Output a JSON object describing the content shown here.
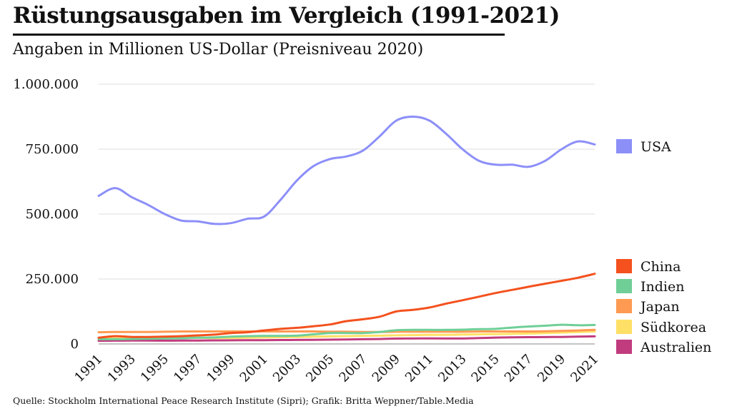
{
  "title": "Rüstungsausgaben im Vergleich (1991-2021)",
  "subtitle": "Angaben in Millionen US-Dollar (Preisniveau 2020)",
  "source": "Quelle: Stockholm International Peace Research Institute (Sipri); Grafik: Britta Weppner/Table.Media",
  "chart_data": {
    "type": "line",
    "title": "Rüstungsausgaben im Vergleich (1991-2021)",
    "subtitle": "Angaben in Millionen US-Dollar (Preisniveau 2020)",
    "xlabel": "",
    "ylabel": "",
    "ylim": [
      0,
      1000000
    ],
    "y_ticks": [
      0,
      250000,
      500000,
      750000,
      1000000
    ],
    "y_tick_labels": [
      "0",
      "250.000",
      "500.000",
      "750.000",
      "1.000.000"
    ],
    "x_tick_labels": [
      "1991",
      "1993",
      "1995",
      "1997",
      "1999",
      "2001",
      "2003",
      "2005",
      "2007",
      "2009",
      "2011",
      "2013",
      "2015",
      "2017",
      "2019",
      "2021"
    ],
    "grid": true,
    "legend_position": "right",
    "x": [
      1991,
      1992,
      1993,
      1994,
      1995,
      1996,
      1997,
      1998,
      1999,
      2000,
      2001,
      2002,
      2003,
      2004,
      2005,
      2006,
      2007,
      2008,
      2009,
      2010,
      2011,
      2012,
      2013,
      2014,
      2015,
      2016,
      2017,
      2018,
      2019,
      2020,
      2021
    ],
    "series": [
      {
        "name": "USA",
        "color": "#8c8ff8",
        "values": [
          570000,
          600000,
          565000,
          535000,
          500000,
          475000,
          472000,
          462000,
          465000,
          482000,
          490000,
          555000,
          630000,
          685000,
          712000,
          722000,
          745000,
          800000,
          860000,
          875000,
          860000,
          810000,
          750000,
          705000,
          690000,
          690000,
          682000,
          705000,
          750000,
          780000,
          768000
        ]
      },
      {
        "name": "China",
        "color": "#f4511e",
        "values": [
          24000,
          30000,
          27000,
          27000,
          28000,
          30000,
          33000,
          36000,
          42000,
          45000,
          52000,
          58000,
          62000,
          68000,
          75000,
          88000,
          95000,
          105000,
          125000,
          131000,
          140000,
          155000,
          168000,
          182000,
          196000,
          208000,
          220000,
          232000,
          243000,
          255000,
          270000
        ]
      },
      {
        "name": "Indien",
        "color": "#6fcf97",
        "values": [
          18000,
          18000,
          19000,
          20000,
          21000,
          22000,
          24000,
          25000,
          28000,
          30000,
          31000,
          31000,
          32000,
          37000,
          42000,
          42000,
          42000,
          46000,
          53000,
          54000,
          54000,
          54000,
          55000,
          57000,
          58000,
          63000,
          67000,
          70000,
          74000,
          72000,
          73000
        ]
      },
      {
        "name": "Japan",
        "color": "#ff9a52",
        "values": [
          45000,
          46000,
          46000,
          46000,
          47000,
          48000,
          48000,
          48000,
          48000,
          48000,
          48000,
          48000,
          48000,
          48000,
          47000,
          47000,
          46000,
          46000,
          47000,
          47000,
          47000,
          47000,
          47000,
          48000,
          48000,
          48000,
          48000,
          49000,
          50000,
          52000,
          54000
        ]
      },
      {
        "name": "Südkorea",
        "color": "#ffe066",
        "values": [
          20000,
          21000,
          22000,
          23000,
          24000,
          24000,
          24000,
          23000,
          23000,
          24000,
          25000,
          26000,
          27000,
          28000,
          29000,
          30000,
          31000,
          32000,
          33000,
          34000,
          35000,
          35000,
          36000,
          37000,
          38000,
          39000,
          40000,
          42000,
          44000,
          46000,
          48000
        ]
      },
      {
        "name": "Australien",
        "color": "#c13c7e",
        "values": [
          12000,
          12500,
          12800,
          12800,
          12700,
          12900,
          13200,
          13600,
          14000,
          14200,
          14500,
          15000,
          15500,
          16000,
          16500,
          17000,
          18000,
          19000,
          20500,
          21000,
          21500,
          21000,
          21000,
          22500,
          24500,
          25500,
          26000,
          26500,
          27000,
          28000,
          29000
        ]
      }
    ]
  }
}
